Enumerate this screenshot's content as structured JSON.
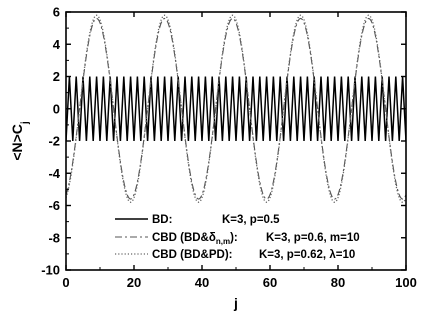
{
  "chart_data": {
    "type": "line",
    "xlabel": "j",
    "ylabel": "<N>C",
    "ylabel_sub": "j",
    "xlim": [
      0,
      100
    ],
    "ylim": [
      -10,
      6
    ],
    "x_ticks": [
      0,
      20,
      40,
      60,
      80,
      100
    ],
    "y_ticks": [
      -10,
      -8,
      -6,
      -4,
      -2,
      0,
      2,
      4,
      6
    ],
    "grid": false,
    "legend_position": "bottom-center",
    "series": [
      {
        "name": "BD:",
        "params": "K=3, p=0.5",
        "style": "solid",
        "color": "#000000",
        "function": "alternating",
        "amplitude": 2.0,
        "period": 2,
        "x_range": [
          0,
          100
        ]
      },
      {
        "name": "CBD (BD&δn,m):",
        "name_main": "CBD (BD&δ",
        "name_sub": "n,m",
        "name_tail": "):",
        "params": "K=3, p=0.6, m=10",
        "style": "dashdot",
        "color": "#555555",
        "function": "cosine",
        "amplitude": 5.6,
        "period": 20,
        "phase_peak_x": 9,
        "x_range": [
          0,
          100
        ]
      },
      {
        "name": "CBD (BD&PD):",
        "params_main": "K=3, p=0.62, ",
        "params_lambda": "λ",
        "params_tail": "=10",
        "params": "K=3, p=0.62, λ=10",
        "style": "dotted",
        "color": "#666666",
        "function": "cosine",
        "amplitude": 5.8,
        "period": 20,
        "phase_peak_x": 9,
        "x_range": [
          0,
          100
        ]
      }
    ]
  }
}
